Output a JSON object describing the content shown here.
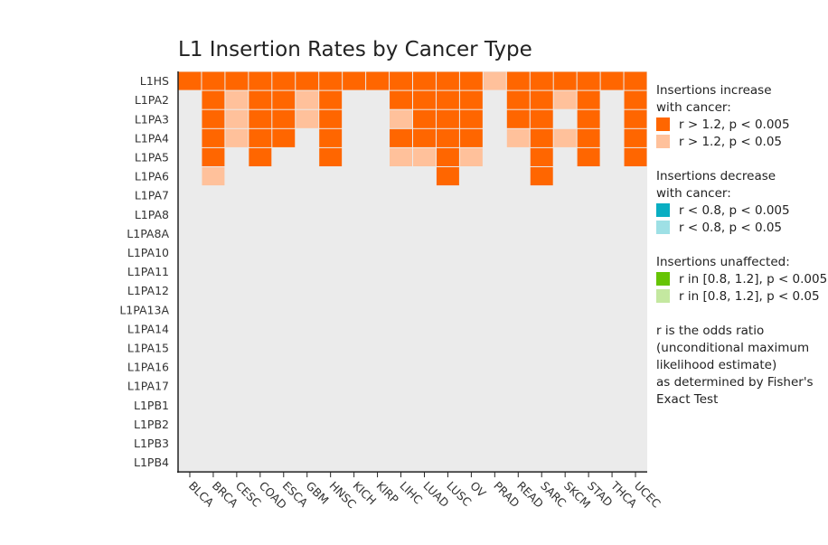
{
  "chart_data": {
    "type": "heatmap",
    "title": "L1 Insertion Rates by Cancer Type",
    "xlabel": "",
    "ylabel": "",
    "x_categories": [
      "BLCA",
      "BRCA",
      "CESC",
      "COAD",
      "ESCA",
      "GBM",
      "HNSC",
      "KICH",
      "KIRP",
      "LIHC",
      "LUAD",
      "LUSC",
      "OV",
      "PRAD",
      "READ",
      "SARC",
      "SKCM",
      "STAD",
      "THCA",
      "UCEC"
    ],
    "y_categories": [
      "L1HS",
      "L1PA2",
      "L1PA3",
      "L1PA4",
      "L1PA5",
      "L1PA6",
      "L1PA7",
      "L1PA8",
      "L1PA8A",
      "L1PA10",
      "L1PA11",
      "L1PA12",
      "L1PA13A",
      "L1PA14",
      "L1PA15",
      "L1PA16",
      "L1PA17",
      "L1PB1",
      "L1PB2",
      "L1PB3",
      "L1PB4"
    ],
    "cell_encoding": "0 = not significant, 1 = r > 1.2, p < 0.005, 2 = r > 1.2, p < 0.05",
    "cells": [
      [
        1,
        1,
        1,
        1,
        1,
        1,
        1,
        1,
        1,
        1,
        1,
        1,
        1,
        2,
        1,
        1,
        1,
        1,
        1,
        1
      ],
      [
        0,
        1,
        2,
        1,
        1,
        2,
        1,
        0,
        0,
        1,
        1,
        1,
        1,
        0,
        1,
        1,
        2,
        1,
        0,
        1
      ],
      [
        0,
        1,
        2,
        1,
        1,
        2,
        1,
        0,
        0,
        2,
        1,
        1,
        1,
        0,
        1,
        1,
        0,
        1,
        0,
        1
      ],
      [
        0,
        1,
        2,
        1,
        1,
        0,
        1,
        0,
        0,
        1,
        1,
        1,
        1,
        0,
        2,
        1,
        2,
        1,
        0,
        1
      ],
      [
        0,
        1,
        0,
        1,
        0,
        0,
        1,
        0,
        0,
        2,
        2,
        1,
        2,
        0,
        0,
        1,
        0,
        1,
        0,
        1
      ],
      [
        0,
        2,
        0,
        0,
        0,
        0,
        0,
        0,
        0,
        0,
        0,
        1,
        0,
        0,
        0,
        1,
        0,
        0,
        0,
        0
      ],
      [
        0,
        0,
        0,
        0,
        0,
        0,
        0,
        0,
        0,
        0,
        0,
        0,
        0,
        0,
        0,
        0,
        0,
        0,
        0,
        0
      ],
      [
        0,
        0,
        0,
        0,
        0,
        0,
        0,
        0,
        0,
        0,
        0,
        0,
        0,
        0,
        0,
        0,
        0,
        0,
        0,
        0
      ],
      [
        0,
        0,
        0,
        0,
        0,
        0,
        0,
        0,
        0,
        0,
        0,
        0,
        0,
        0,
        0,
        0,
        0,
        0,
        0,
        0
      ],
      [
        0,
        0,
        0,
        0,
        0,
        0,
        0,
        0,
        0,
        0,
        0,
        0,
        0,
        0,
        0,
        0,
        0,
        0,
        0,
        0
      ],
      [
        0,
        0,
        0,
        0,
        0,
        0,
        0,
        0,
        0,
        0,
        0,
        0,
        0,
        0,
        0,
        0,
        0,
        0,
        0,
        0
      ],
      [
        0,
        0,
        0,
        0,
        0,
        0,
        0,
        0,
        0,
        0,
        0,
        0,
        0,
        0,
        0,
        0,
        0,
        0,
        0,
        0
      ],
      [
        0,
        0,
        0,
        0,
        0,
        0,
        0,
        0,
        0,
        0,
        0,
        0,
        0,
        0,
        0,
        0,
        0,
        0,
        0,
        0
      ],
      [
        0,
        0,
        0,
        0,
        0,
        0,
        0,
        0,
        0,
        0,
        0,
        0,
        0,
        0,
        0,
        0,
        0,
        0,
        0,
        0
      ],
      [
        0,
        0,
        0,
        0,
        0,
        0,
        0,
        0,
        0,
        0,
        0,
        0,
        0,
        0,
        0,
        0,
        0,
        0,
        0,
        0
      ],
      [
        0,
        0,
        0,
        0,
        0,
        0,
        0,
        0,
        0,
        0,
        0,
        0,
        0,
        0,
        0,
        0,
        0,
        0,
        0,
        0
      ],
      [
        0,
        0,
        0,
        0,
        0,
        0,
        0,
        0,
        0,
        0,
        0,
        0,
        0,
        0,
        0,
        0,
        0,
        0,
        0,
        0
      ],
      [
        0,
        0,
        0,
        0,
        0,
        0,
        0,
        0,
        0,
        0,
        0,
        0,
        0,
        0,
        0,
        0,
        0,
        0,
        0,
        0
      ],
      [
        0,
        0,
        0,
        0,
        0,
        0,
        0,
        0,
        0,
        0,
        0,
        0,
        0,
        0,
        0,
        0,
        0,
        0,
        0,
        0
      ],
      [
        0,
        0,
        0,
        0,
        0,
        0,
        0,
        0,
        0,
        0,
        0,
        0,
        0,
        0,
        0,
        0,
        0,
        0,
        0,
        0
      ],
      [
        0,
        0,
        0,
        0,
        0,
        0,
        0,
        0,
        0,
        0,
        0,
        0,
        0,
        0,
        0,
        0,
        0,
        0,
        0,
        0
      ]
    ],
    "colors": {
      "background": "#ebebeb",
      "inc_strong": "#ff6600",
      "inc_weak": "#ffc19b",
      "dec_strong": "#0aaec2",
      "dec_weak": "#9ee0e5",
      "unaff_strong": "#66c404",
      "unaff_weak": "#c4e8a0"
    },
    "legend": {
      "placement": "right",
      "groups": [
        {
          "heading": [
            "Insertions increase",
            "with cancer:"
          ],
          "items": [
            {
              "label": "r > 1.2, p < 0.005",
              "color": "#ff6600"
            },
            {
              "label": "r > 1.2, p < 0.05",
              "color": "#ffc19b"
            }
          ]
        },
        {
          "heading": [
            "Insertions decrease",
            "with cancer:"
          ],
          "items": [
            {
              "label": "r < 0.8, p < 0.005",
              "color": "#0aaec2"
            },
            {
              "label": "r < 0.8, p < 0.05",
              "color": "#9ee0e5"
            }
          ]
        },
        {
          "heading": [
            "Insertions unaffected:"
          ],
          "items": [
            {
              "label": "r in [0.8, 1.2], p < 0.005",
              "color": "#66c404"
            },
            {
              "label": "r in [0.8, 1.2], p < 0.05",
              "color": "#c4e8a0"
            }
          ]
        }
      ],
      "note": [
        "r is the odds ratio",
        "(unconditional maximum",
        "likelihood estimate)",
        "as determined by Fisher's",
        "Exact Test"
      ]
    }
  }
}
